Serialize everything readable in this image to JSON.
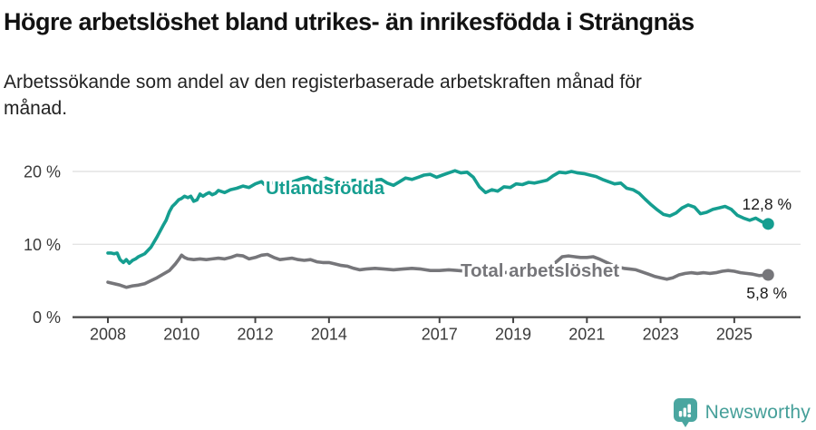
{
  "header": {
    "title": "Högre arbetslöshet bland utrikes- än inrikesfödda i Strängnäs",
    "subtitle": "Arbetssökande som andel av den registerbaserade arbetskraften månad för månad."
  },
  "chart_data": {
    "type": "line",
    "title": "Högre arbetslöshet bland utrikes- än inrikesfödda i Strängnäs",
    "subtitle": "Arbetssökande som andel av den registerbaserade arbetskraften månad för månad.",
    "xlabel": "",
    "ylabel": "",
    "x_unit": "year (monthly observations)",
    "y_unit": "percent of registered labour force",
    "ylim": [
      0,
      22
    ],
    "xlim": [
      2007,
      2026.8
    ],
    "grid": "horizontal",
    "legend_position": "inline-labels",
    "y_ticks": [
      {
        "value": 0,
        "label": "0 %"
      },
      {
        "value": 10,
        "label": "10 %"
      },
      {
        "value": 20,
        "label": "20 %"
      }
    ],
    "x_ticks": [
      {
        "value": 2008,
        "label": "2008"
      },
      {
        "value": 2010,
        "label": "2010"
      },
      {
        "value": 2012,
        "label": "2012"
      },
      {
        "value": 2014,
        "label": "2014"
      },
      {
        "value": 2017,
        "label": "2017"
      },
      {
        "value": 2019,
        "label": "2019"
      },
      {
        "value": 2021,
        "label": "2021"
      },
      {
        "value": 2023,
        "label": "2023"
      },
      {
        "value": 2025,
        "label": "2025"
      }
    ],
    "series": [
      {
        "name": "Utlandsfödda",
        "color": "#159e90",
        "end_value": 12.8,
        "end_label": "12,8 %",
        "points": [
          [
            2008.0,
            8.8
          ],
          [
            2008.08,
            8.8
          ],
          [
            2008.17,
            8.7
          ],
          [
            2008.25,
            8.8
          ],
          [
            2008.33,
            7.9
          ],
          [
            2008.42,
            7.5
          ],
          [
            2008.5,
            7.9
          ],
          [
            2008.58,
            7.4
          ],
          [
            2008.67,
            7.8
          ],
          [
            2008.75,
            8.0
          ],
          [
            2008.83,
            8.3
          ],
          [
            2008.92,
            8.5
          ],
          [
            2009.0,
            8.7
          ],
          [
            2009.17,
            9.6
          ],
          [
            2009.33,
            11.0
          ],
          [
            2009.5,
            12.6
          ],
          [
            2009.58,
            13.3
          ],
          [
            2009.67,
            14.5
          ],
          [
            2009.75,
            15.2
          ],
          [
            2009.83,
            15.6
          ],
          [
            2009.92,
            16.1
          ],
          [
            2010.0,
            16.3
          ],
          [
            2010.08,
            16.6
          ],
          [
            2010.17,
            16.4
          ],
          [
            2010.25,
            16.6
          ],
          [
            2010.33,
            15.9
          ],
          [
            2010.42,
            16.1
          ],
          [
            2010.5,
            16.9
          ],
          [
            2010.58,
            16.6
          ],
          [
            2010.67,
            16.9
          ],
          [
            2010.75,
            17.1
          ],
          [
            2010.83,
            16.8
          ],
          [
            2010.92,
            17.0
          ],
          [
            2011.0,
            17.4
          ],
          [
            2011.17,
            17.1
          ],
          [
            2011.33,
            17.5
          ],
          [
            2011.5,
            17.7
          ],
          [
            2011.67,
            18.0
          ],
          [
            2011.83,
            17.8
          ],
          [
            2012.0,
            18.3
          ],
          [
            2012.17,
            18.6
          ],
          [
            2012.25,
            18.2
          ],
          [
            2012.42,
            18.4
          ],
          [
            2012.58,
            18.5
          ],
          [
            2012.75,
            18.2
          ],
          [
            2012.92,
            18.4
          ],
          [
            2013.08,
            18.7
          ],
          [
            2013.25,
            19.0
          ],
          [
            2013.42,
            19.2
          ],
          [
            2013.58,
            18.8
          ],
          [
            2013.75,
            18.7
          ],
          [
            2013.92,
            19.1
          ],
          [
            2014.08,
            18.8
          ],
          [
            2014.25,
            18.6
          ],
          [
            2014.5,
            18.7
          ],
          [
            2014.75,
            18.8
          ],
          [
            2015.0,
            18.7
          ],
          [
            2015.25,
            18.8
          ],
          [
            2015.42,
            18.9
          ],
          [
            2015.58,
            18.4
          ],
          [
            2015.75,
            18.1
          ],
          [
            2015.92,
            18.6
          ],
          [
            2016.08,
            19.1
          ],
          [
            2016.25,
            18.9
          ],
          [
            2016.42,
            19.2
          ],
          [
            2016.58,
            19.5
          ],
          [
            2016.75,
            19.6
          ],
          [
            2016.92,
            19.2
          ],
          [
            2017.08,
            19.5
          ],
          [
            2017.25,
            19.8
          ],
          [
            2017.42,
            20.1
          ],
          [
            2017.58,
            19.8
          ],
          [
            2017.75,
            19.9
          ],
          [
            2017.92,
            19.2
          ],
          [
            2018.08,
            17.9
          ],
          [
            2018.25,
            17.1
          ],
          [
            2018.42,
            17.5
          ],
          [
            2018.58,
            17.3
          ],
          [
            2018.75,
            17.9
          ],
          [
            2018.92,
            17.8
          ],
          [
            2019.08,
            18.3
          ],
          [
            2019.25,
            18.2
          ],
          [
            2019.42,
            18.5
          ],
          [
            2019.58,
            18.4
          ],
          [
            2019.75,
            18.6
          ],
          [
            2019.92,
            18.8
          ],
          [
            2020.08,
            19.4
          ],
          [
            2020.25,
            19.9
          ],
          [
            2020.42,
            19.8
          ],
          [
            2020.58,
            20.0
          ],
          [
            2020.75,
            19.8
          ],
          [
            2020.92,
            19.7
          ],
          [
            2021.08,
            19.5
          ],
          [
            2021.25,
            19.3
          ],
          [
            2021.42,
            18.9
          ],
          [
            2021.58,
            18.6
          ],
          [
            2021.75,
            18.3
          ],
          [
            2021.92,
            18.4
          ],
          [
            2022.08,
            17.7
          ],
          [
            2022.25,
            17.5
          ],
          [
            2022.42,
            17.0
          ],
          [
            2022.58,
            16.2
          ],
          [
            2022.75,
            15.4
          ],
          [
            2022.92,
            14.7
          ],
          [
            2023.08,
            14.1
          ],
          [
            2023.25,
            13.9
          ],
          [
            2023.42,
            14.3
          ],
          [
            2023.58,
            15.0
          ],
          [
            2023.75,
            15.4
          ],
          [
            2023.92,
            15.1
          ],
          [
            2024.08,
            14.2
          ],
          [
            2024.25,
            14.4
          ],
          [
            2024.42,
            14.8
          ],
          [
            2024.58,
            15.0
          ],
          [
            2024.75,
            15.2
          ],
          [
            2024.92,
            14.8
          ],
          [
            2025.08,
            14.0
          ],
          [
            2025.25,
            13.6
          ],
          [
            2025.42,
            13.3
          ],
          [
            2025.58,
            13.6
          ],
          [
            2025.75,
            13.1
          ],
          [
            2025.92,
            12.8
          ]
        ]
      },
      {
        "name": "Total arbetslöshet",
        "color": "#76767a",
        "end_value": 5.8,
        "end_label": "5,8 %",
        "points": [
          [
            2008.0,
            4.8
          ],
          [
            2008.17,
            4.6
          ],
          [
            2008.33,
            4.4
          ],
          [
            2008.5,
            4.1
          ],
          [
            2008.67,
            4.3
          ],
          [
            2008.83,
            4.4
          ],
          [
            2009.0,
            4.6
          ],
          [
            2009.17,
            5.0
          ],
          [
            2009.33,
            5.4
          ],
          [
            2009.5,
            5.9
          ],
          [
            2009.67,
            6.4
          ],
          [
            2009.83,
            7.3
          ],
          [
            2009.92,
            7.9
          ],
          [
            2010.0,
            8.5
          ],
          [
            2010.08,
            8.2
          ],
          [
            2010.17,
            8.0
          ],
          [
            2010.33,
            7.9
          ],
          [
            2010.5,
            8.0
          ],
          [
            2010.67,
            7.9
          ],
          [
            2010.83,
            8.0
          ],
          [
            2011.0,
            8.1
          ],
          [
            2011.17,
            8.0
          ],
          [
            2011.33,
            8.2
          ],
          [
            2011.5,
            8.5
          ],
          [
            2011.67,
            8.4
          ],
          [
            2011.83,
            8.0
          ],
          [
            2012.0,
            8.2
          ],
          [
            2012.17,
            8.5
          ],
          [
            2012.33,
            8.6
          ],
          [
            2012.5,
            8.2
          ],
          [
            2012.67,
            7.9
          ],
          [
            2012.83,
            8.0
          ],
          [
            2013.0,
            8.1
          ],
          [
            2013.17,
            7.9
          ],
          [
            2013.33,
            7.8
          ],
          [
            2013.5,
            7.9
          ],
          [
            2013.67,
            7.6
          ],
          [
            2013.83,
            7.5
          ],
          [
            2014.0,
            7.5
          ],
          [
            2014.17,
            7.3
          ],
          [
            2014.33,
            7.1
          ],
          [
            2014.5,
            7.0
          ],
          [
            2014.67,
            6.7
          ],
          [
            2014.83,
            6.5
          ],
          [
            2015.0,
            6.6
          ],
          [
            2015.25,
            6.7
          ],
          [
            2015.5,
            6.6
          ],
          [
            2015.75,
            6.5
          ],
          [
            2016.0,
            6.6
          ],
          [
            2016.25,
            6.7
          ],
          [
            2016.5,
            6.6
          ],
          [
            2016.75,
            6.4
          ],
          [
            2017.0,
            6.4
          ],
          [
            2017.25,
            6.5
          ],
          [
            2017.5,
            6.4
          ],
          [
            2017.75,
            6.3
          ],
          [
            2018.0,
            6.2
          ],
          [
            2018.25,
            6.1
          ],
          [
            2018.5,
            6.2
          ],
          [
            2018.75,
            6.1
          ],
          [
            2019.0,
            6.2
          ],
          [
            2019.25,
            6.3
          ],
          [
            2019.5,
            6.4
          ],
          [
            2019.75,
            6.5
          ],
          [
            2020.0,
            6.8
          ],
          [
            2020.17,
            7.6
          ],
          [
            2020.33,
            8.3
          ],
          [
            2020.5,
            8.4
          ],
          [
            2020.67,
            8.3
          ],
          [
            2020.83,
            8.2
          ],
          [
            2021.0,
            8.2
          ],
          [
            2021.17,
            8.3
          ],
          [
            2021.33,
            8.0
          ],
          [
            2021.5,
            7.6
          ],
          [
            2021.67,
            7.2
          ],
          [
            2021.83,
            6.9
          ],
          [
            2022.0,
            6.7
          ],
          [
            2022.17,
            6.6
          ],
          [
            2022.33,
            6.5
          ],
          [
            2022.5,
            6.2
          ],
          [
            2022.67,
            5.9
          ],
          [
            2022.83,
            5.6
          ],
          [
            2023.0,
            5.4
          ],
          [
            2023.17,
            5.2
          ],
          [
            2023.33,
            5.4
          ],
          [
            2023.5,
            5.8
          ],
          [
            2023.67,
            6.0
          ],
          [
            2023.83,
            6.1
          ],
          [
            2024.0,
            6.0
          ],
          [
            2024.17,
            6.1
          ],
          [
            2024.33,
            6.0
          ],
          [
            2024.5,
            6.1
          ],
          [
            2024.67,
            6.3
          ],
          [
            2024.83,
            6.4
          ],
          [
            2025.0,
            6.3
          ],
          [
            2025.17,
            6.1
          ],
          [
            2025.33,
            6.0
          ],
          [
            2025.5,
            5.9
          ],
          [
            2025.67,
            5.7
          ],
          [
            2025.92,
            5.8
          ]
        ]
      }
    ]
  },
  "footer": {
    "brand": "Newsworthy",
    "brand_color": "#459f99",
    "icon": "newsworthy-bar-chart-pin-icon",
    "icon_color": "#4aa6a0"
  }
}
